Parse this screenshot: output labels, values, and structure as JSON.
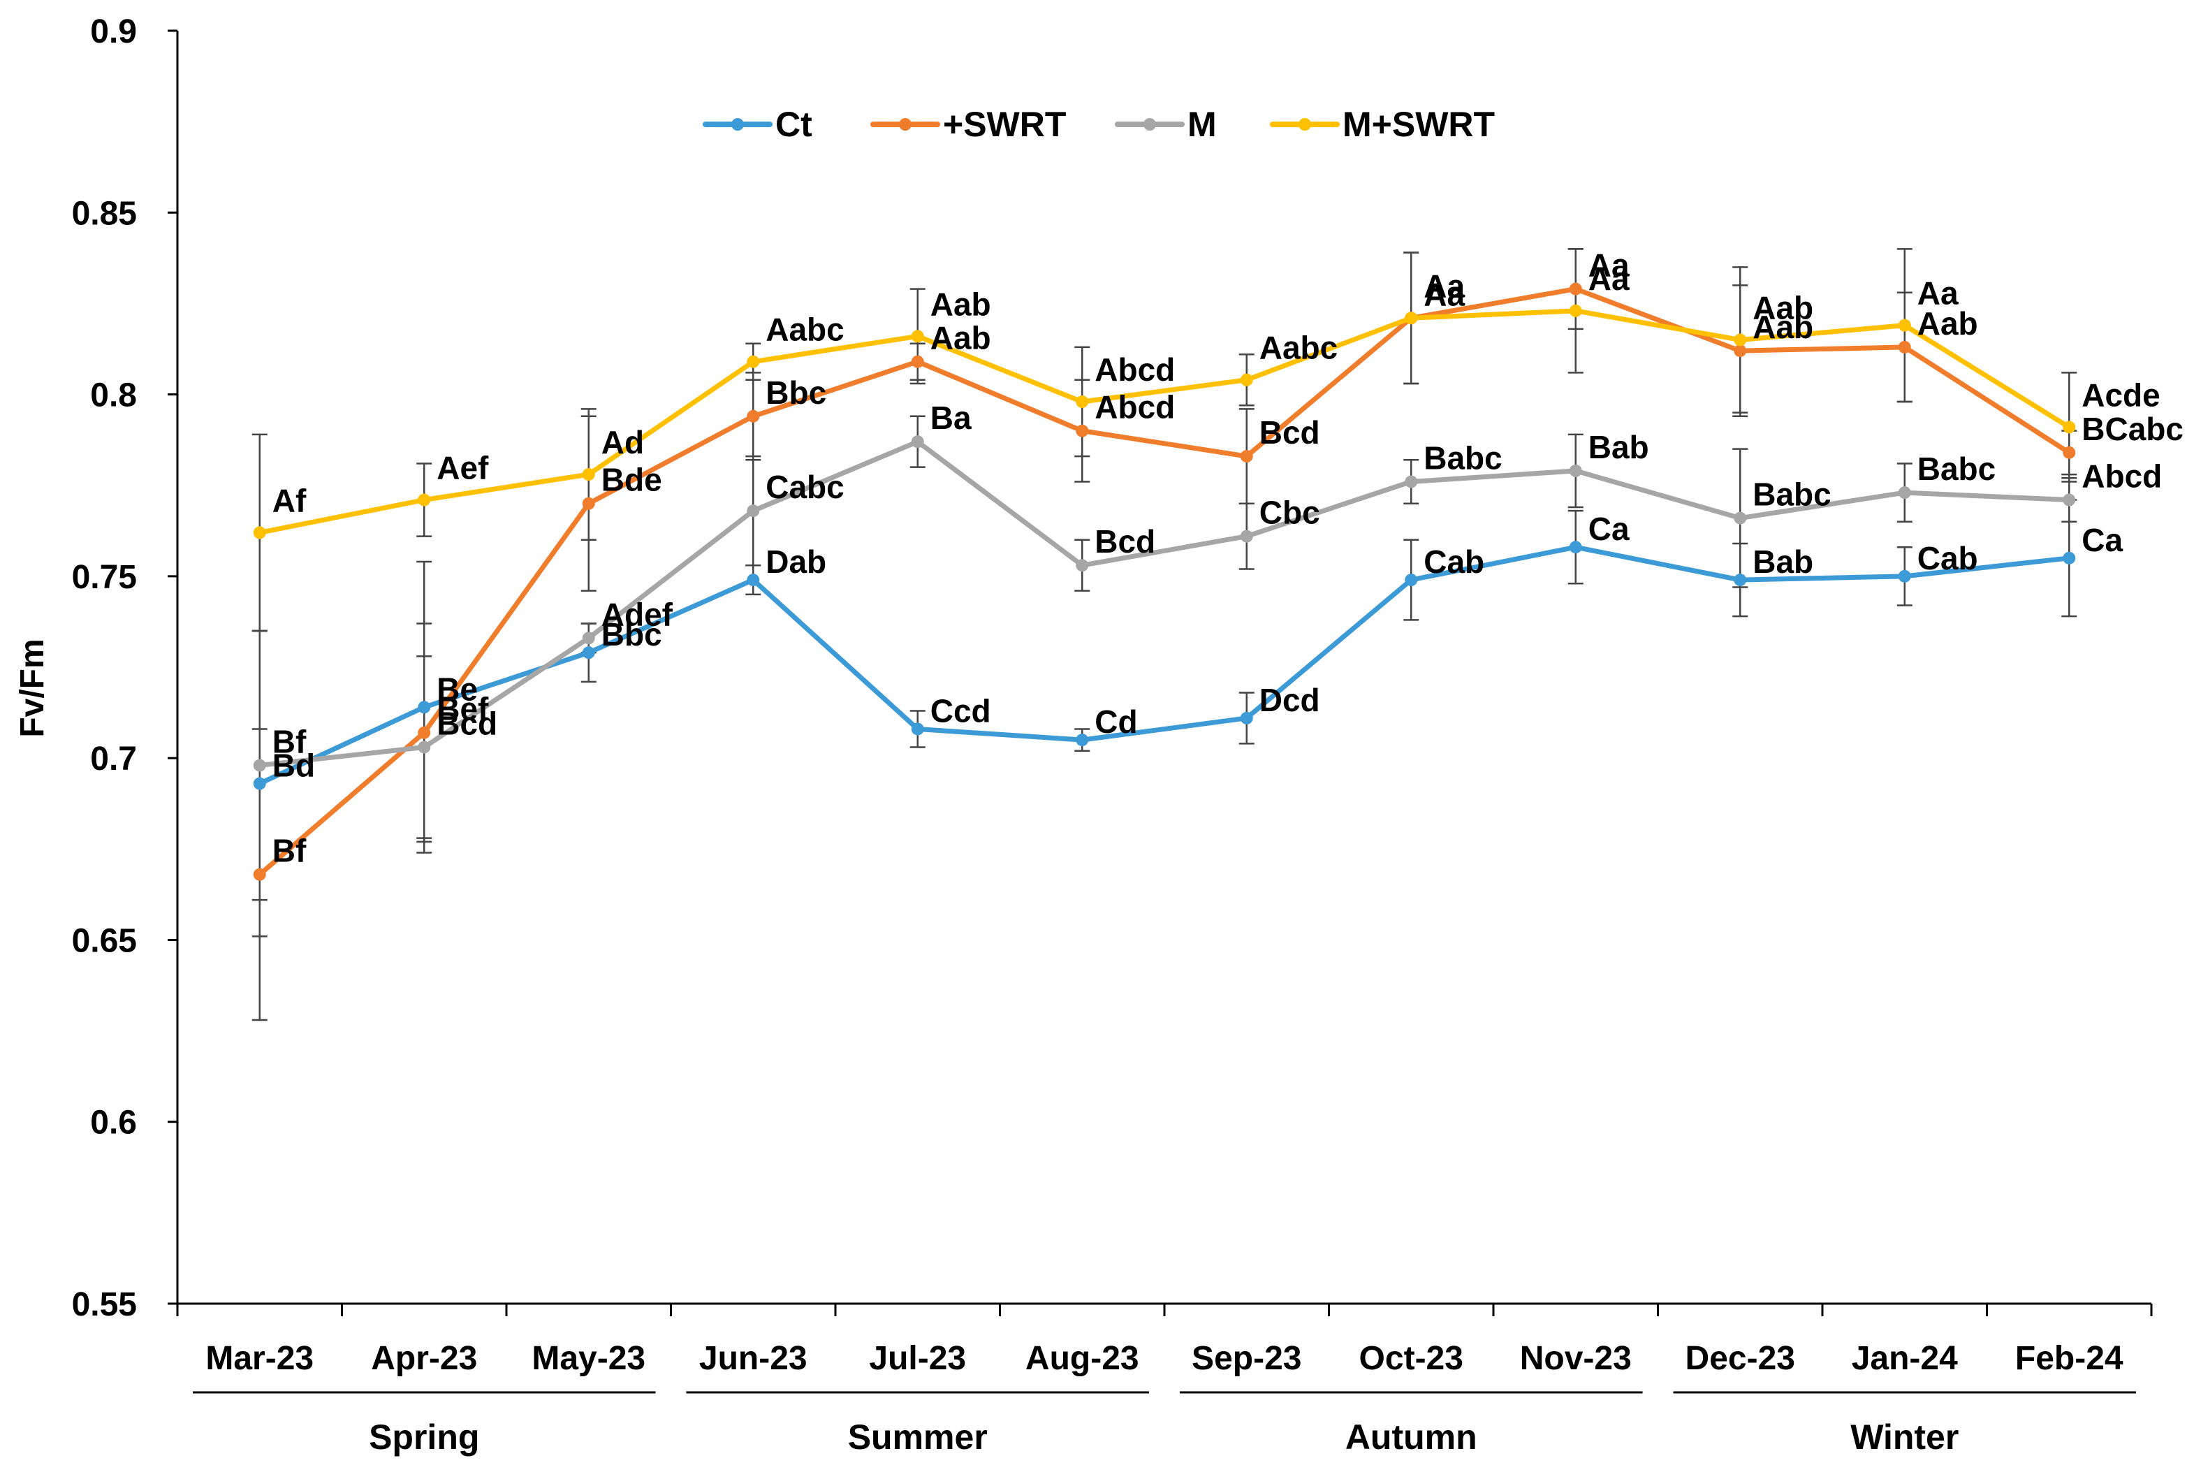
{
  "chart_data": {
    "type": "line",
    "title": "",
    "xlabel": "",
    "ylabel": "Fv/Fm",
    "ylim": [
      0.55,
      0.9
    ],
    "yticks": [
      0.55,
      0.6,
      0.65,
      0.7,
      0.75,
      0.8,
      0.85,
      0.9
    ],
    "ytick_labels": [
      "0.55",
      "0.6",
      "0.65",
      "0.7",
      "0.75",
      "0.8",
      "0.85",
      "0.9"
    ],
    "legend_position": "top-center",
    "grid": false,
    "categories": [
      "Mar-23",
      "Apr-23",
      "May-23",
      "Jun-23",
      "Jul-23",
      "Aug-23",
      "Sep-23",
      "Oct-23",
      "Nov-23",
      "Dec-23",
      "Jan-24",
      "Feb-24"
    ],
    "seasons": [
      {
        "name": "Spring",
        "start": 0,
        "end": 2
      },
      {
        "name": "Summer",
        "start": 3,
        "end": 5
      },
      {
        "name": "Autumn",
        "start": 6,
        "end": 8
      },
      {
        "name": "Winter",
        "start": 9,
        "end": 11
      }
    ],
    "series": [
      {
        "name": "Ct",
        "color": "#3c9ad6",
        "values": [
          0.693,
          0.714,
          0.729,
          0.749,
          0.708,
          0.705,
          0.711,
          0.749,
          0.758,
          0.749,
          0.75,
          0.755
        ],
        "errors": [
          0.042,
          0.04,
          0.008,
          0.004,
          0.005,
          0.003,
          0.007,
          0.011,
          0.01,
          0.01,
          0.008,
          0.016
        ],
        "labels": [
          "Bd",
          "Be",
          "Bbc",
          "Dab",
          "Ccd",
          "Cd",
          "Dcd",
          "Cab",
          "Ca",
          "Bab",
          "Cab",
          "Ca"
        ]
      },
      {
        "name": "+SWRT",
        "color": "#f07d2c",
        "values": [
          0.668,
          0.707,
          0.77,
          0.794,
          0.809,
          0.79,
          0.783,
          0.821,
          0.829,
          0.812,
          0.813,
          0.784
        ],
        "errors": [
          0.04,
          0.03,
          0.024,
          0.012,
          0.005,
          0.014,
          0.013,
          0.018,
          0.011,
          0.018,
          0.015,
          0.006
        ],
        "labels": [
          "Bf",
          "Bef",
          "Bde",
          "Bbc",
          "Aab",
          "Abcd",
          "Bcd",
          "Aa",
          "Aa",
          "Aab",
          "Aab",
          "BCabc"
        ]
      },
      {
        "name": "M",
        "color": "#a6a6a6",
        "values": [
          0.698,
          0.703,
          0.733,
          0.768,
          0.787,
          0.753,
          0.761,
          0.776,
          0.779,
          0.766,
          0.773,
          0.771
        ],
        "errors": [
          0.037,
          0.025,
          0.004,
          0.015,
          0.007,
          0.007,
          0.009,
          0.006,
          0.01,
          0.019,
          0.008,
          0.006
        ],
        "labels": [
          "Bf",
          "Bcd",
          "Adef",
          "Cabc",
          "Ba",
          "Bcd",
          "Cbc",
          "Babc",
          "Bab",
          "Babc",
          "Babc",
          "Abcd"
        ]
      },
      {
        "name": "M+SWRT",
        "color": "#ffc000",
        "values": [
          0.762,
          0.771,
          0.778,
          0.809,
          0.816,
          0.798,
          0.804,
          0.821,
          0.823,
          0.815,
          0.819,
          0.791
        ],
        "errors": [
          0.027,
          0.01,
          0.018,
          0.005,
          0.013,
          0.015,
          0.007,
          0.018,
          0.017,
          0.02,
          0.021,
          0.015
        ],
        "labels": [
          "Af",
          "Aef",
          "Ad",
          "Aabc",
          "Aab",
          "Abcd",
          "Aabc",
          "Aa",
          "Aa",
          "Aab",
          "Aa",
          "Acde"
        ]
      }
    ]
  }
}
